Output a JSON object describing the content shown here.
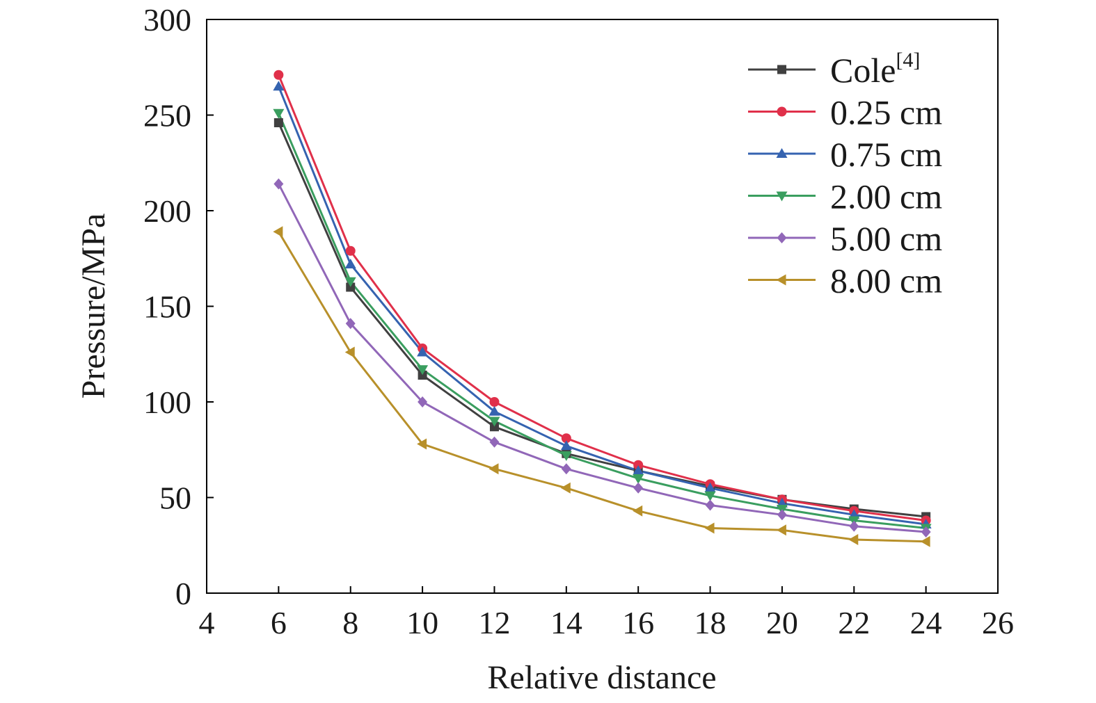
{
  "chart_data": {
    "type": "line",
    "xlabel": "Relative distance",
    "ylabel": "Pressure/MPa",
    "xlim": [
      4,
      26
    ],
    "ylim": [
      0,
      300
    ],
    "xticks": [
      4,
      6,
      8,
      10,
      12,
      14,
      16,
      18,
      20,
      22,
      24,
      26
    ],
    "yticks": [
      0,
      50,
      100,
      150,
      200,
      250,
      300
    ],
    "grid": false,
    "legend_position": "top-right",
    "x": [
      6,
      8,
      10,
      12,
      14,
      16,
      18,
      20,
      22,
      24
    ],
    "series": [
      {
        "name": "Cole",
        "name_superscript": "[4]",
        "color": "#404040",
        "marker": "square",
        "values": [
          246,
          160,
          114,
          87,
          73,
          64,
          56,
          49,
          44,
          40
        ]
      },
      {
        "name": "0.25 cm",
        "color": "#e0304a",
        "marker": "circle",
        "values": [
          271,
          179,
          128,
          100,
          81,
          67,
          57,
          49,
          43,
          38
        ]
      },
      {
        "name": "0.75 cm",
        "color": "#3563b0",
        "marker": "triangle-up",
        "values": [
          265,
          172,
          126,
          95,
          77,
          64,
          55,
          47,
          41,
          36
        ]
      },
      {
        "name": "2.00 cm",
        "color": "#3a9e5f",
        "marker": "triangle-down",
        "values": [
          251,
          163,
          117,
          90,
          72,
          60,
          51,
          44,
          38,
          34
        ]
      },
      {
        "name": "5.00 cm",
        "color": "#9167b8",
        "marker": "diamond",
        "values": [
          214,
          141,
          100,
          79,
          65,
          55,
          46,
          41,
          35,
          32
        ]
      },
      {
        "name": "8.00 cm",
        "color": "#b8902a",
        "marker": "triangle-left",
        "values": [
          189,
          126,
          78,
          65,
          55,
          43,
          34,
          33,
          28,
          27
        ]
      }
    ]
  }
}
